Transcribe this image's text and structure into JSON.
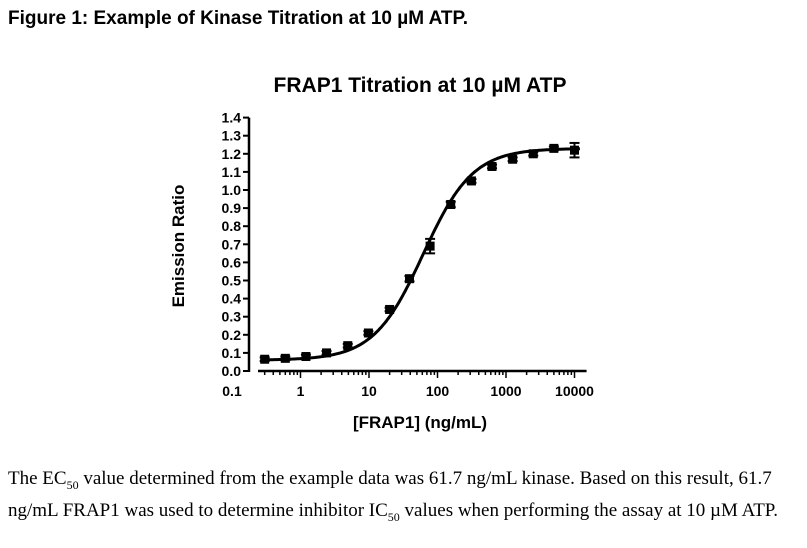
{
  "figure": {
    "title": "Figure 1: Example of Kinase Titration at 10 µM ATP."
  },
  "caption": {
    "s1_pre": "The EC",
    "s1_sub": "50",
    "s1_post": " value determined from the example data was 61.7 ng/mL kinase. Based on this result, 61.7 ng/mL FRAP1 was used to determine inhibitor IC",
    "s2_sub": "50",
    "s2_post": " values when performing the assay at 10 µM ATP."
  },
  "chart_data": {
    "type": "scatter",
    "title": "FRAP1 Titration at 10 µM ATP",
    "xlabel": "[FRAP1] (ng/mL)",
    "ylabel": "Emission Ratio",
    "xscale": "log",
    "xlim": [
      0.1,
      15000
    ],
    "ylim": [
      0.0,
      1.4
    ],
    "xticks": [
      "0.1",
      "1",
      "10",
      "100",
      "1000",
      "10000"
    ],
    "xtick_values": [
      0.1,
      1,
      10,
      100,
      1000,
      10000
    ],
    "yticks": [
      "0.0",
      "0.1",
      "0.2",
      "0.3",
      "0.4",
      "0.5",
      "0.6",
      "0.7",
      "0.8",
      "0.9",
      "1.0",
      "1.1",
      "1.2",
      "1.3",
      "1.4"
    ],
    "ytick_values": [
      0.0,
      0.1,
      0.2,
      0.3,
      0.4,
      0.5,
      0.6,
      0.7,
      0.8,
      0.9,
      1.0,
      1.1,
      1.2,
      1.3,
      1.4
    ],
    "grid": false,
    "marker_color": "#000000",
    "points": [
      {
        "x": 0.3,
        "y": 0.065,
        "err": 0.01
      },
      {
        "x": 0.6,
        "y": 0.07,
        "err": 0.01
      },
      {
        "x": 1.2,
        "y": 0.08,
        "err": 0.01
      },
      {
        "x": 2.4,
        "y": 0.1,
        "err": 0.01
      },
      {
        "x": 4.9,
        "y": 0.14,
        "err": 0.01
      },
      {
        "x": 9.8,
        "y": 0.21,
        "err": 0.01
      },
      {
        "x": 20,
        "y": 0.34,
        "err": 0.01
      },
      {
        "x": 39,
        "y": 0.51,
        "err": 0.015
      },
      {
        "x": 78,
        "y": 0.69,
        "err": 0.04
      },
      {
        "x": 156,
        "y": 0.92,
        "err": 0.015
      },
      {
        "x": 313,
        "y": 1.05,
        "err": 0.01
      },
      {
        "x": 625,
        "y": 1.13,
        "err": 0.01
      },
      {
        "x": 1250,
        "y": 1.17,
        "err": 0.01
      },
      {
        "x": 2500,
        "y": 1.2,
        "err": 0.01
      },
      {
        "x": 5000,
        "y": 1.23,
        "err": 0.01
      },
      {
        "x": 10000,
        "y": 1.22,
        "err": 0.04
      }
    ],
    "fit": {
      "bottom": 0.06,
      "top": 1.23,
      "ec50": 61.7,
      "hill": 1.2
    }
  }
}
